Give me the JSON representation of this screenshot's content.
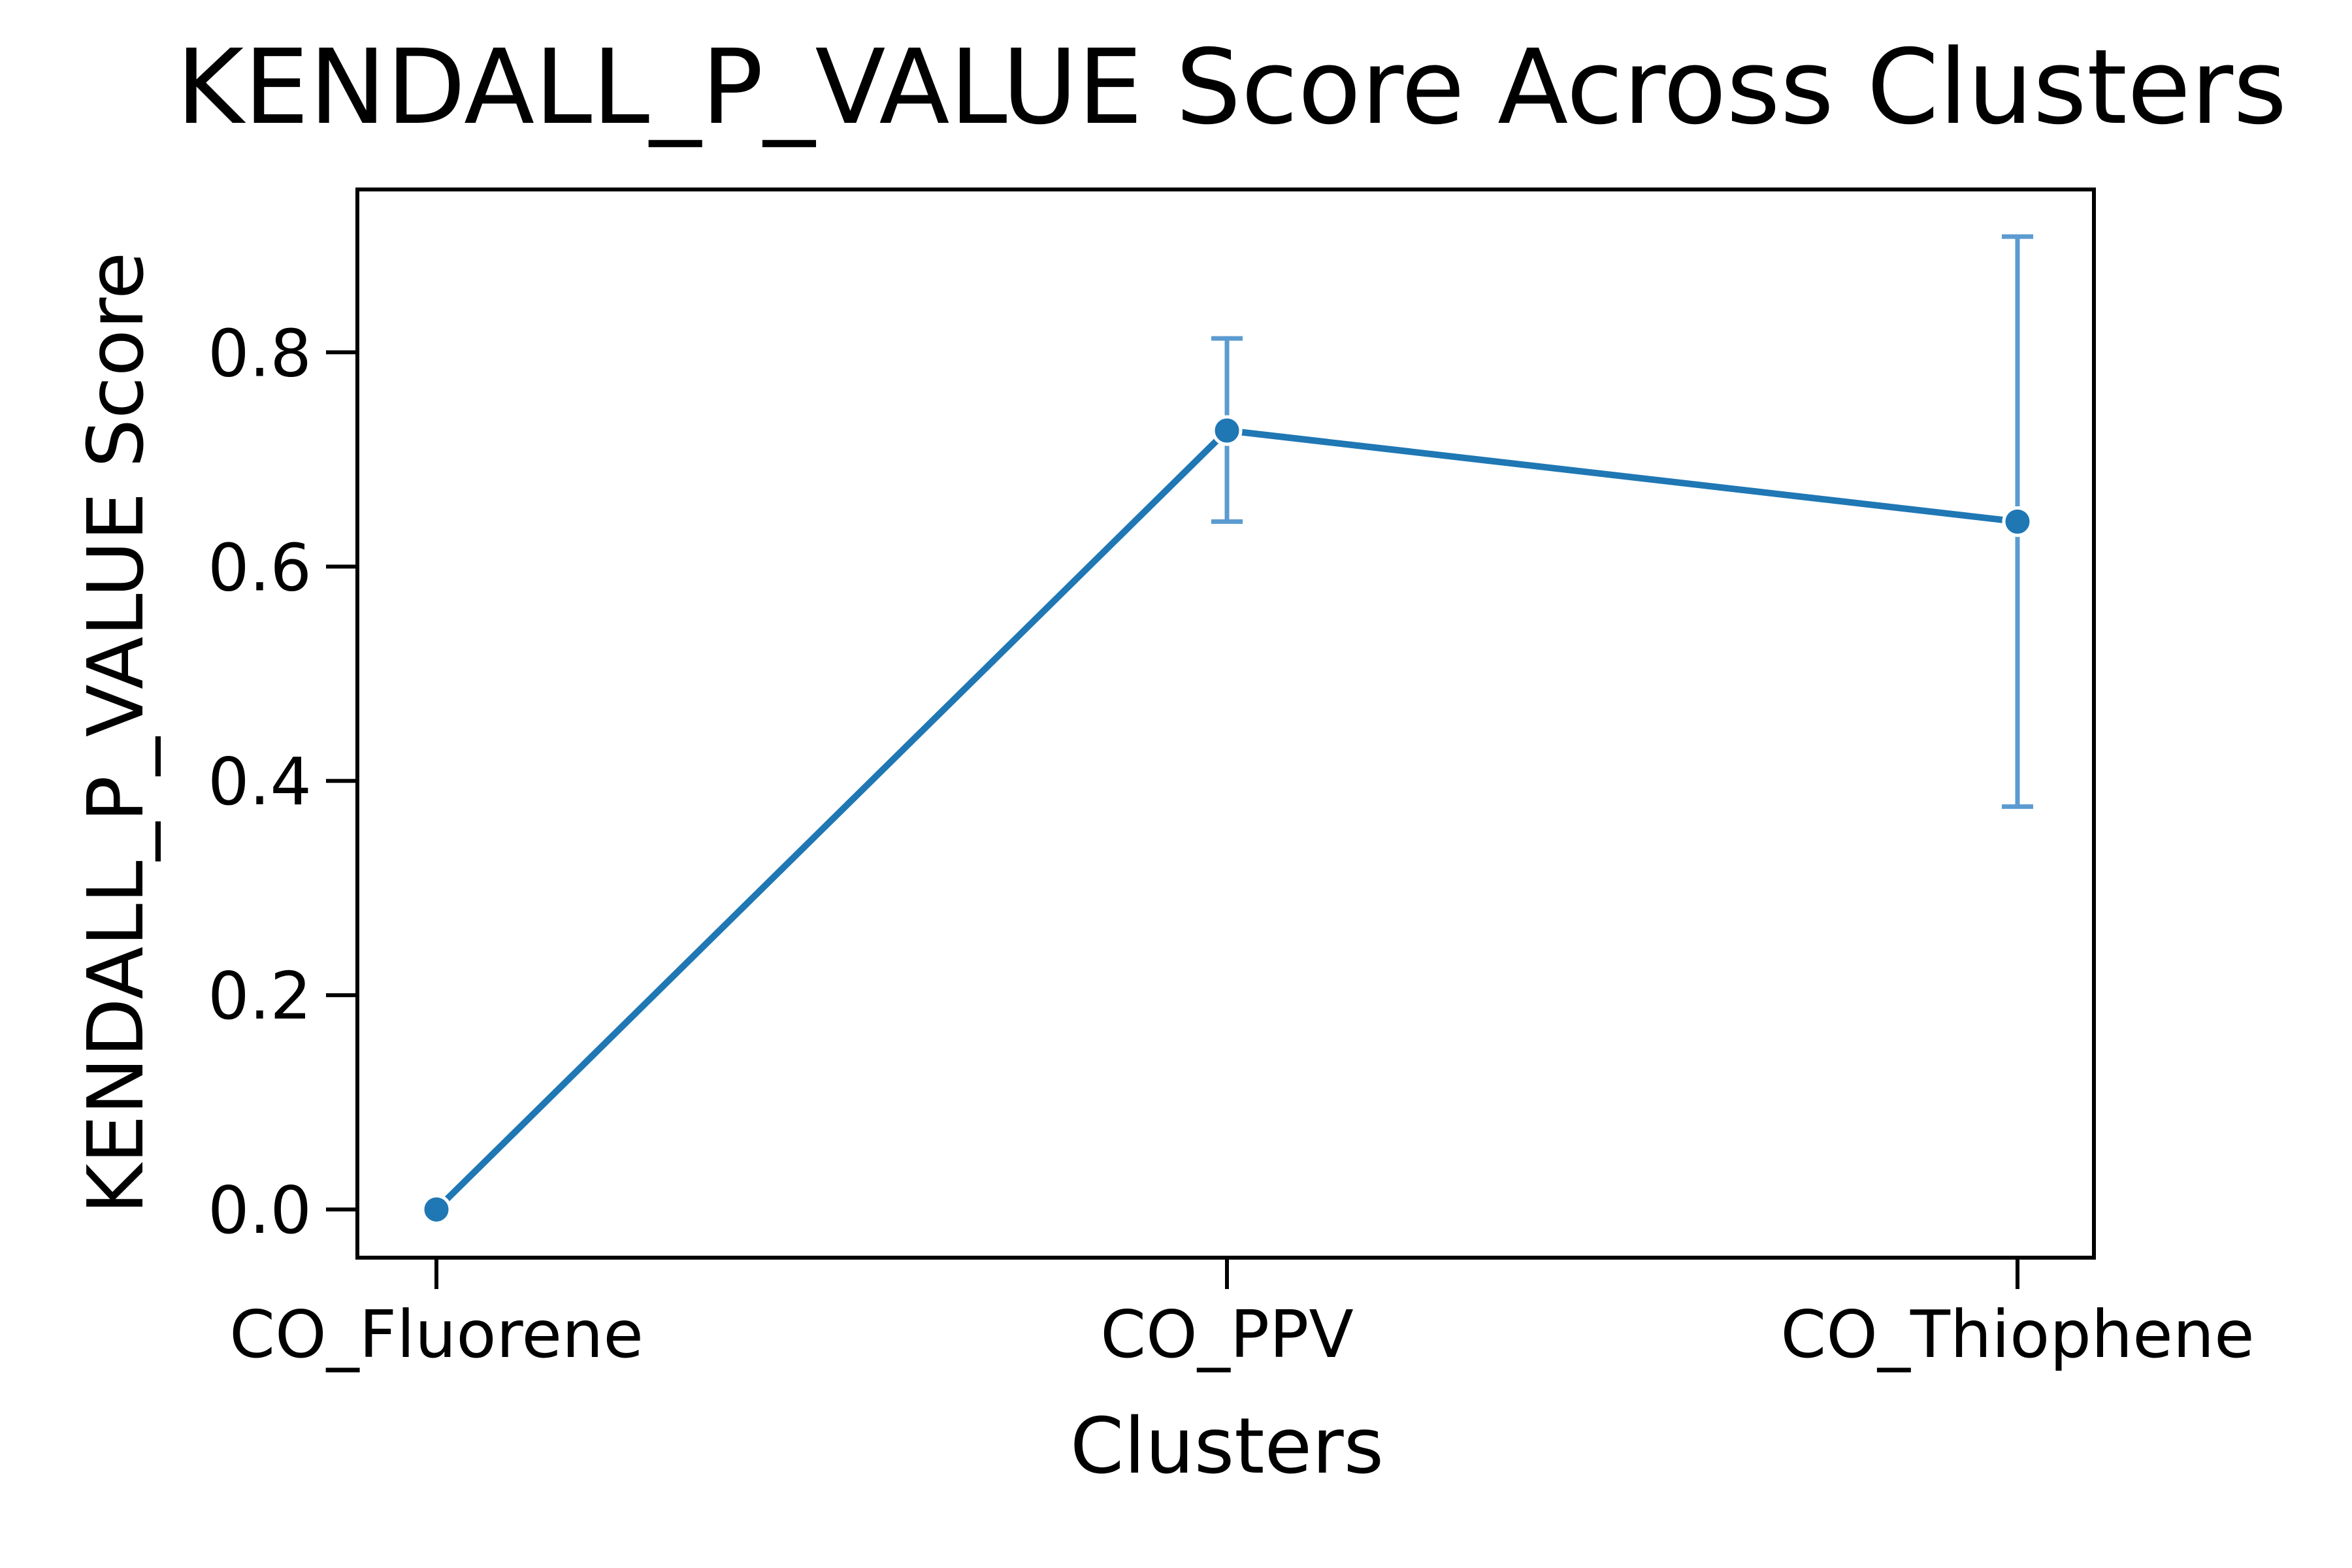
{
  "chart_data": {
    "type": "line",
    "title": "KENDALL_P_VALUE Score Across Clusters",
    "xlabel": "Clusters",
    "ylabel": "KENDALL_P_VALUE Score",
    "categories": [
      "CO_Fluorene",
      "CO_PPV",
      "CO_Thiophene"
    ],
    "values": [
      0.0,
      0.727,
      0.642
    ],
    "error_low": [
      0.0,
      0.642,
      0.376
    ],
    "error_high": [
      0.0,
      0.813,
      0.908
    ],
    "ylim": [
      -0.045,
      0.952
    ],
    "yticks": [
      0.0,
      0.2,
      0.4,
      0.6,
      0.8
    ],
    "ytick_labels": [
      "0.0",
      "0.2",
      "0.4",
      "0.6",
      "0.8"
    ],
    "grid": false,
    "line_color": "#1f77b4",
    "error_color": "#5b9bd0"
  }
}
